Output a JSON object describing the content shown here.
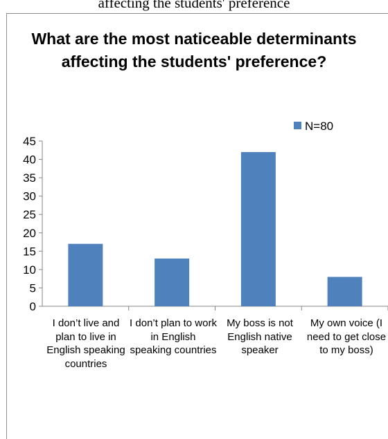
{
  "caption": "affecting the students' preference",
  "chart_data": {
    "type": "bar",
    "title": "What are the most naticeable determinants affecting the students' preference?",
    "categories": [
      "I don’t live and plan to live in English speaking countries",
      "I don’t plan to work in English speaking countries",
      "My boss is not English native speaker",
      "My own voice (I need to get close to my boss)"
    ],
    "series": [
      {
        "name": "N=80",
        "values": [
          17,
          13,
          42,
          8
        ]
      }
    ],
    "ylim": [
      0,
      45
    ],
    "yticks": [
      0,
      5,
      10,
      15,
      20,
      25,
      30,
      35,
      40,
      45
    ],
    "grid": false,
    "legend": "top-right",
    "colors": {
      "bar": "#4f81bd",
      "axis": "#868686"
    }
  }
}
